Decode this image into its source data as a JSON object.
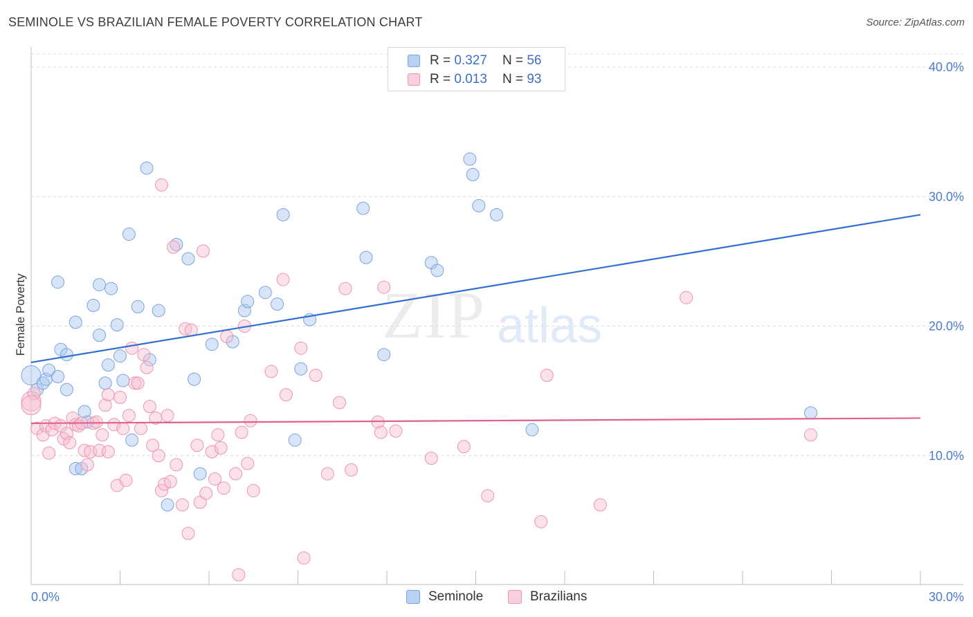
{
  "title": "SEMINOLE VS BRAZILIAN FEMALE POVERTY CORRELATION CHART",
  "source": "Source: ZipAtlas.com",
  "watermark": {
    "zip": "ZIP",
    "atlas": "atlas"
  },
  "legend_top": {
    "rows": [
      {
        "r_label": "R =",
        "r_value": "0.327",
        "n_label": "N =",
        "n_value": "56"
      },
      {
        "r_label": "R =",
        "r_value": "0.013",
        "n_label": "N =",
        "n_value": "93"
      }
    ]
  },
  "chart_data": {
    "type": "scatter",
    "title": "SEMINOLE VS BRAZILIAN FEMALE POVERTY CORRELATION CHART",
    "xlabel": "",
    "ylabel": "Female Poverty",
    "xlim": [
      0,
      30
    ],
    "ylim": [
      0,
      40
    ],
    "x_tick_labels": [
      "0.0%",
      "30.0%"
    ],
    "y_tick_labels": [
      "10.0%",
      "20.0%",
      "30.0%",
      "40.0%"
    ],
    "y_ticks": [
      10,
      20,
      30,
      40
    ],
    "grid": "horizontal dashed",
    "legend_placement": "bottom-center",
    "series": [
      {
        "name": "Seminole",
        "color": "#a9c6f0",
        "stroke": "#7aa3de",
        "line_color": "#2f6fcf",
        "r": 0.327,
        "n": 56,
        "trend": [
          [
            0,
            17.2
          ],
          [
            30,
            28.6
          ]
        ],
        "points": [
          [
            0.0,
            16.2
          ],
          [
            0.2,
            15.1
          ],
          [
            0.4,
            15.6
          ],
          [
            0.5,
            15.9
          ],
          [
            0.6,
            16.6
          ],
          [
            0.9,
            16.1
          ],
          [
            0.9,
            23.4
          ],
          [
            1.0,
            18.2
          ],
          [
            1.2,
            15.1
          ],
          [
            1.2,
            17.8
          ],
          [
            1.5,
            20.3
          ],
          [
            1.5,
            9.0
          ],
          [
            1.7,
            9.0
          ],
          [
            1.8,
            13.4
          ],
          [
            1.9,
            12.6
          ],
          [
            2.1,
            21.6
          ],
          [
            2.3,
            23.2
          ],
          [
            2.3,
            19.3
          ],
          [
            2.5,
            15.6
          ],
          [
            2.6,
            17.0
          ],
          [
            2.7,
            22.9
          ],
          [
            2.9,
            20.1
          ],
          [
            3.0,
            17.7
          ],
          [
            3.1,
            15.8
          ],
          [
            3.3,
            27.1
          ],
          [
            3.4,
            11.2
          ],
          [
            3.6,
            21.5
          ],
          [
            3.9,
            32.2
          ],
          [
            4.0,
            17.4
          ],
          [
            4.3,
            21.2
          ],
          [
            4.6,
            6.2
          ],
          [
            4.9,
            26.3
          ],
          [
            5.3,
            25.2
          ],
          [
            5.5,
            15.9
          ],
          [
            5.7,
            8.6
          ],
          [
            6.1,
            18.6
          ],
          [
            6.8,
            18.8
          ],
          [
            7.2,
            21.2
          ],
          [
            7.3,
            21.9
          ],
          [
            7.9,
            22.6
          ],
          [
            8.3,
            21.7
          ],
          [
            8.5,
            28.6
          ],
          [
            8.9,
            11.2
          ],
          [
            9.1,
            16.7
          ],
          [
            9.4,
            20.5
          ],
          [
            11.2,
            29.1
          ],
          [
            11.3,
            25.3
          ],
          [
            11.9,
            17.8
          ],
          [
            13.5,
            24.9
          ],
          [
            13.7,
            24.3
          ],
          [
            14.8,
            32.9
          ],
          [
            14.9,
            31.7
          ],
          [
            15.1,
            29.3
          ],
          [
            15.7,
            28.6
          ],
          [
            16.9,
            12.0
          ],
          [
            26.3,
            13.3
          ]
        ]
      },
      {
        "name": "Brazilians",
        "color": "#f7bfd0",
        "stroke": "#ee93b0",
        "line_color": "#e0608e",
        "r": 0.013,
        "n": 93,
        "trend": [
          [
            0,
            12.5
          ],
          [
            30,
            12.9
          ]
        ],
        "points": [
          [
            0.0,
            14.2
          ],
          [
            0.1,
            14.8
          ],
          [
            0.2,
            12.1
          ],
          [
            0.4,
            11.6
          ],
          [
            0.5,
            12.3
          ],
          [
            0.6,
            10.2
          ],
          [
            0.7,
            12.0
          ],
          [
            0.8,
            12.5
          ],
          [
            1.0,
            12.3
          ],
          [
            1.1,
            11.3
          ],
          [
            1.2,
            11.7
          ],
          [
            1.3,
            11.0
          ],
          [
            1.4,
            12.9
          ],
          [
            1.5,
            12.4
          ],
          [
            1.6,
            12.3
          ],
          [
            1.7,
            12.5
          ],
          [
            1.8,
            10.4
          ],
          [
            1.9,
            9.3
          ],
          [
            2.0,
            10.3
          ],
          [
            2.1,
            12.5
          ],
          [
            2.2,
            12.6
          ],
          [
            2.3,
            10.4
          ],
          [
            2.4,
            11.6
          ],
          [
            2.5,
            13.9
          ],
          [
            2.6,
            10.3
          ],
          [
            2.6,
            14.7
          ],
          [
            2.8,
            12.4
          ],
          [
            2.9,
            7.7
          ],
          [
            3.0,
            14.5
          ],
          [
            3.1,
            12.1
          ],
          [
            3.2,
            8.1
          ],
          [
            3.3,
            13.1
          ],
          [
            3.4,
            18.3
          ],
          [
            3.5,
            15.6
          ],
          [
            3.6,
            15.6
          ],
          [
            3.7,
            12.1
          ],
          [
            3.8,
            17.8
          ],
          [
            3.9,
            16.8
          ],
          [
            4.0,
            13.8
          ],
          [
            4.1,
            10.8
          ],
          [
            4.2,
            12.9
          ],
          [
            4.3,
            10.0
          ],
          [
            4.4,
            30.9
          ],
          [
            4.4,
            7.3
          ],
          [
            4.5,
            7.8
          ],
          [
            4.6,
            13.1
          ],
          [
            4.7,
            8.0
          ],
          [
            4.8,
            26.1
          ],
          [
            4.9,
            9.3
          ],
          [
            5.1,
            6.2
          ],
          [
            5.2,
            19.8
          ],
          [
            5.3,
            4.0
          ],
          [
            5.4,
            19.7
          ],
          [
            5.6,
            10.8
          ],
          [
            5.7,
            6.4
          ],
          [
            5.8,
            25.8
          ],
          [
            5.9,
            7.1
          ],
          [
            6.1,
            10.3
          ],
          [
            6.2,
            8.2
          ],
          [
            6.3,
            11.6
          ],
          [
            6.4,
            10.6
          ],
          [
            6.5,
            7.5
          ],
          [
            6.6,
            19.2
          ],
          [
            6.9,
            8.6
          ],
          [
            7.0,
            0.8
          ],
          [
            7.1,
            11.8
          ],
          [
            7.2,
            20.0
          ],
          [
            7.3,
            9.4
          ],
          [
            7.4,
            12.7
          ],
          [
            7.5,
            7.3
          ],
          [
            8.1,
            16.5
          ],
          [
            8.5,
            23.6
          ],
          [
            8.6,
            14.7
          ],
          [
            9.1,
            18.3
          ],
          [
            9.2,
            2.1
          ],
          [
            9.6,
            16.2
          ],
          [
            10.0,
            8.6
          ],
          [
            10.4,
            14.1
          ],
          [
            10.6,
            22.9
          ],
          [
            10.8,
            8.9
          ],
          [
            11.7,
            12.6
          ],
          [
            11.8,
            11.8
          ],
          [
            11.9,
            23.0
          ],
          [
            12.3,
            11.9
          ],
          [
            13.5,
            9.8
          ],
          [
            14.6,
            10.7
          ],
          [
            15.4,
            6.9
          ],
          [
            17.2,
            4.9
          ],
          [
            17.4,
            16.2
          ],
          [
            19.2,
            6.2
          ],
          [
            22.1,
            22.2
          ],
          [
            26.3,
            11.6
          ],
          [
            0.0,
            13.9
          ]
        ]
      }
    ]
  }
}
